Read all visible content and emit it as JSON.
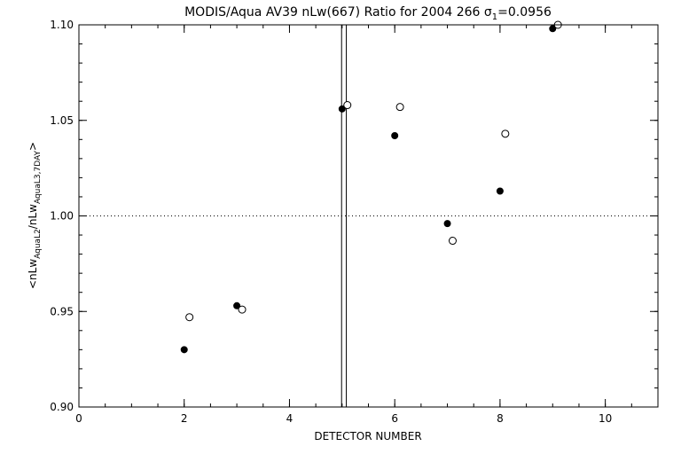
{
  "chart_data": {
    "type": "scatter",
    "title": "MODIS/Aqua AV39 nLw(667) Ratio for 2004 266",
    "title_sigma": "σ",
    "title_sigma_sub": "1",
    "title_sigma_value": "=0.0956",
    "xlabel": "DETECTOR NUMBER",
    "ylabel_prefix": "<nLw",
    "ylabel_sub1": "AquaL2",
    "ylabel_mid": "/nLw",
    "ylabel_sub2": "AquaL3,7DAY",
    "ylabel_suffix": ">",
    "xlim": [
      0,
      11
    ],
    "ylim": [
      0.9,
      1.1
    ],
    "x_major_ticks": [
      0,
      2,
      4,
      6,
      8,
      10
    ],
    "x_tick_labels": [
      "0",
      "2",
      "4",
      "6",
      "8",
      "10"
    ],
    "x_minor_step": 0.5,
    "y_major_ticks": [
      0.9,
      0.95,
      1.0,
      1.05,
      1.1
    ],
    "y_tick_labels": [
      "0.90",
      "0.95",
      "1.00",
      "1.05",
      "1.10"
    ],
    "y_minor_step": 0.01,
    "reference_line_y": 1.0,
    "vertical_lines_x": [
      4.99,
      5.08
    ],
    "series": [
      {
        "marker": "filled-circle",
        "x": [
          2,
          3,
          5,
          6,
          7,
          8,
          9
        ],
        "y": [
          0.93,
          0.953,
          1.056,
          1.042,
          0.996,
          1.013,
          1.098
        ]
      },
      {
        "marker": "open-circle",
        "x": [
          2.1,
          3.1,
          5.1,
          6.1,
          7.1,
          8.1,
          9.1
        ],
        "y": [
          0.947,
          0.951,
          1.058,
          1.057,
          0.987,
          1.043,
          1.1
        ]
      }
    ]
  }
}
